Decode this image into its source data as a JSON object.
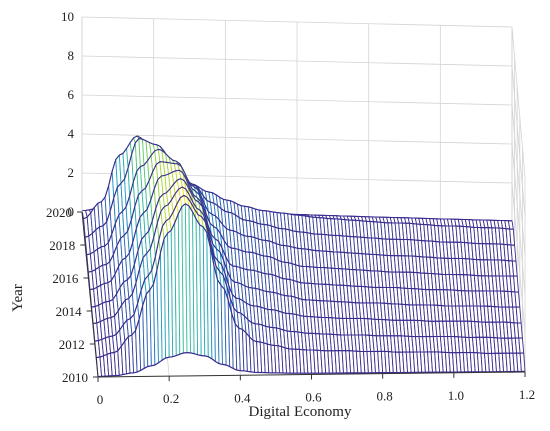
{
  "chart_data": {
    "type": "surface",
    "xlabel": "Digital Economy",
    "ylabel": "Year",
    "zlabel": "",
    "x_ticks": [
      "0",
      "0.2",
      "0.4",
      "0.6",
      "0.8",
      "1.0",
      "1.2"
    ],
    "y_ticks": [
      "2010",
      "2012",
      "2014",
      "2016",
      "2018",
      "2020"
    ],
    "z_ticks": [
      "0",
      "2",
      "4",
      "6",
      "8",
      "10"
    ],
    "xlim": [
      0,
      1.2
    ],
    "ylim": [
      2010,
      2020
    ],
    "zlim": [
      0,
      10
    ],
    "grid": true,
    "colormap": [
      "#3b2d8f",
      "#2c5fb6",
      "#1f9bc6",
      "#3cc09a",
      "#a6d63c",
      "#f4e51e"
    ],
    "x": [
      0,
      0.05,
      0.1,
      0.15,
      0.2,
      0.25,
      0.3,
      0.35,
      0.4,
      0.45,
      0.5,
      0.55,
      0.6,
      0.65,
      0.7,
      0.75,
      0.8,
      0.85,
      0.9,
      0.95,
      1.0,
      1.05,
      1.1,
      1.15,
      1.2
    ],
    "series": [
      {
        "name": "2011",
        "peak_x": 0.24,
        "peak_density": 8.0,
        "values": [
          0.15,
          0.4,
          1.3,
          3.6,
          6.5,
          8.0,
          6.8,
          3.8,
          1.6,
          0.9,
          0.7,
          0.5,
          0.45,
          0.4,
          0.4,
          0.35,
          0.35,
          0.3,
          0.3,
          0.3,
          0.25,
          0.25,
          0.2,
          0.2,
          0.2
        ]
      },
      {
        "name": "2012",
        "peak_x": 0.24,
        "peak_density": 7.6,
        "values": [
          0.15,
          0.4,
          1.3,
          3.5,
          6.3,
          7.6,
          6.5,
          3.7,
          1.6,
          1.0,
          0.8,
          0.6,
          0.5,
          0.45,
          0.4,
          0.4,
          0.35,
          0.35,
          0.3,
          0.3,
          0.3,
          0.25,
          0.25,
          0.2,
          0.2
        ]
      },
      {
        "name": "2013",
        "peak_x": 0.23,
        "peak_density": 7.2,
        "values": [
          0.2,
          0.5,
          1.5,
          3.8,
          6.2,
          7.2,
          6.0,
          3.4,
          1.5,
          1.1,
          0.9,
          0.7,
          0.55,
          0.5,
          0.45,
          0.45,
          0.4,
          0.35,
          0.35,
          0.3,
          0.3,
          0.3,
          0.25,
          0.25,
          0.2
        ]
      },
      {
        "name": "2014",
        "peak_x": 0.23,
        "peak_density": 6.8,
        "values": [
          0.2,
          0.5,
          1.6,
          3.9,
          6.0,
          6.8,
          5.6,
          3.2,
          1.5,
          1.2,
          1.0,
          0.8,
          0.6,
          0.55,
          0.5,
          0.45,
          0.45,
          0.4,
          0.35,
          0.35,
          0.3,
          0.3,
          0.3,
          0.25,
          0.25
        ]
      },
      {
        "name": "2015",
        "peak_x": 0.22,
        "peak_density": 6.4,
        "values": [
          0.25,
          0.6,
          1.9,
          4.2,
          6.1,
          6.4,
          5.0,
          2.9,
          1.5,
          1.3,
          1.1,
          0.85,
          0.65,
          0.6,
          0.55,
          0.5,
          0.45,
          0.45,
          0.4,
          0.35,
          0.35,
          0.3,
          0.3,
          0.3,
          0.25
        ]
      },
      {
        "name": "2016",
        "peak_x": 0.22,
        "peak_density": 6.0,
        "values": [
          0.3,
          0.7,
          2.2,
          4.5,
          6.0,
          5.9,
          4.5,
          2.7,
          1.6,
          1.4,
          1.2,
          0.9,
          0.7,
          0.65,
          0.6,
          0.55,
          0.5,
          0.45,
          0.45,
          0.4,
          0.35,
          0.35,
          0.3,
          0.3,
          0.3
        ]
      },
      {
        "name": "2017",
        "peak_x": 0.2,
        "peak_density": 5.8,
        "values": [
          0.35,
          0.8,
          2.6,
          4.9,
          5.8,
          5.2,
          3.9,
          2.5,
          1.7,
          1.4,
          1.2,
          0.95,
          0.8,
          0.7,
          0.65,
          0.6,
          0.55,
          0.5,
          0.5,
          0.45,
          0.4,
          0.4,
          0.35,
          0.35,
          0.3
        ]
      },
      {
        "name": "2018",
        "peak_x": 0.18,
        "peak_density": 5.5,
        "values": [
          0.4,
          1.0,
          3.2,
          5.5,
          5.2,
          4.3,
          3.2,
          2.3,
          1.8,
          1.4,
          1.2,
          1.0,
          0.85,
          0.75,
          0.7,
          0.65,
          0.6,
          0.55,
          0.55,
          0.5,
          0.45,
          0.45,
          0.4,
          0.4,
          0.35
        ]
      },
      {
        "name": "2019",
        "peak_x": 0.15,
        "peak_density": 4.8,
        "values": [
          0.5,
          1.4,
          3.8,
          4.8,
          3.8,
          3.0,
          2.4,
          2.0,
          1.6,
          1.3,
          1.1,
          1.0,
          0.9,
          0.8,
          0.75,
          0.7,
          0.65,
          0.6,
          0.6,
          0.55,
          0.5,
          0.5,
          0.45,
          0.45,
          0.4
        ]
      }
    ]
  }
}
